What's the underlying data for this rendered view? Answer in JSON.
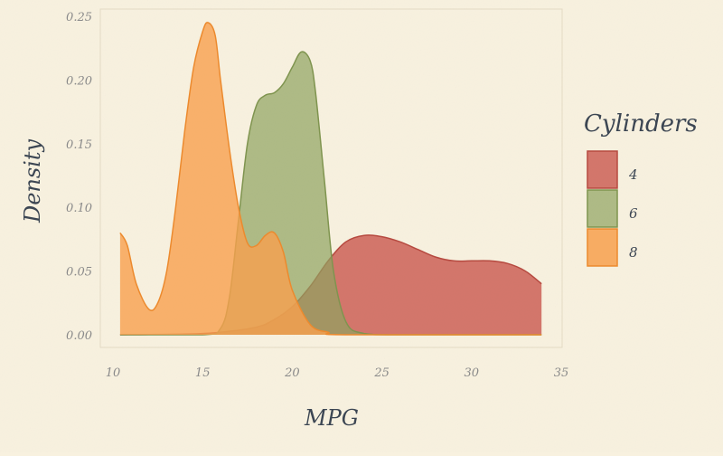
{
  "chart_data": {
    "type": "area",
    "subtype": "density",
    "title": "",
    "xlabel": "MPG",
    "ylabel": "Density",
    "xlim": [
      10,
      35
    ],
    "ylim": [
      0,
      0.25
    ],
    "x_ticks": [
      "10",
      "15",
      "20",
      "25",
      "30",
      "35"
    ],
    "y_ticks": [
      "0.00",
      "0.05",
      "0.10",
      "0.15",
      "0.20",
      "0.25"
    ],
    "grid": false,
    "legend": {
      "title": "Cylinders",
      "position": "right",
      "entries": [
        "4",
        "6",
        "8"
      ]
    },
    "series": [
      {
        "name": "4",
        "color": "#c9574d",
        "x": [
          10.4,
          14,
          16,
          18,
          19,
          20,
          21,
          22,
          23,
          24,
          25,
          26,
          27,
          28,
          29,
          30,
          31,
          32,
          33,
          33.9
        ],
        "y": [
          0.0,
          0.0005,
          0.002,
          0.006,
          0.012,
          0.022,
          0.038,
          0.058,
          0.073,
          0.078,
          0.077,
          0.073,
          0.067,
          0.061,
          0.058,
          0.058,
          0.058,
          0.056,
          0.05,
          0.04
        ]
      },
      {
        "name": "6",
        "color": "#8fa35f",
        "x": [
          10.4,
          15,
          16,
          16.5,
          17,
          17.5,
          18,
          18.5,
          19,
          19.5,
          20,
          20.5,
          21,
          21.3,
          21.8,
          22.3,
          23,
          24,
          26,
          33.9
        ],
        "y": [
          0.0,
          0.0,
          0.005,
          0.03,
          0.09,
          0.15,
          0.18,
          0.188,
          0.19,
          0.197,
          0.21,
          0.222,
          0.215,
          0.19,
          0.12,
          0.05,
          0.01,
          0.001,
          0.0,
          0.0
        ]
      },
      {
        "name": "8",
        "color": "#f7a04e",
        "x": [
          10.4,
          10.8,
          11.3,
          12,
          12.5,
          13,
          13.5,
          14,
          14.5,
          15,
          15.3,
          15.7,
          16,
          16.5,
          17,
          17.5,
          18,
          18.5,
          19,
          19.5,
          20,
          21,
          22,
          23,
          33.9
        ],
        "y": [
          0.08,
          0.07,
          0.04,
          0.02,
          0.025,
          0.05,
          0.1,
          0.16,
          0.21,
          0.238,
          0.245,
          0.235,
          0.2,
          0.145,
          0.1,
          0.072,
          0.07,
          0.078,
          0.08,
          0.065,
          0.035,
          0.008,
          0.002,
          0.0,
          0.0
        ]
      }
    ]
  }
}
